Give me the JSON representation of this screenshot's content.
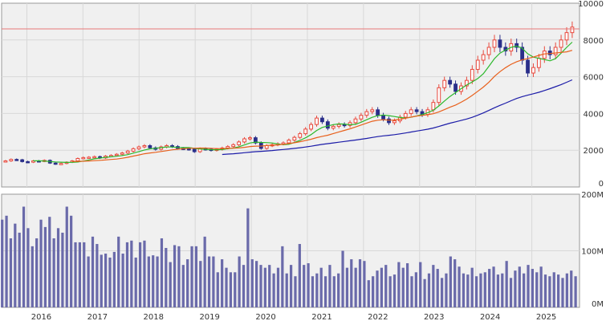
{
  "chart_data": [
    {
      "type": "candlestick",
      "title": "",
      "y_axis_position": "right",
      "ylim": [
        0,
        10000
      ],
      "y_ticks": [
        0,
        2000,
        4000,
        6000,
        8000,
        10000
      ],
      "y_tick_labels": [
        "0",
        "2000",
        "4000",
        "6000",
        "8000",
        "10000"
      ],
      "x_tick_labels": [
        "2016",
        "2017",
        "2018",
        "2019",
        "2020",
        "2021",
        "2022",
        "2023",
        "2024",
        "2025"
      ],
      "x_tick_values": [
        2016.0,
        2017.0,
        2018.0,
        2019.0,
        2020.0,
        2021.0,
        2022.0,
        2023.0,
        2024.0,
        2025.0
      ],
      "x_range": [
        2015.55,
        2025.85
      ],
      "grid": true,
      "reference_line": {
        "value": 8600,
        "color": "#e87878"
      },
      "colors": {
        "up": "#e8483c",
        "down": "#2a2f8a",
        "ma_short": "#2cb82c",
        "ma_mid": "#e8601c",
        "ma_long": "#1c1ca8",
        "plot_bg": "#f0f0f0"
      },
      "candle_close": [
        1420,
        1500,
        1480,
        1380,
        1350,
        1420,
        1400,
        1450,
        1300,
        1250,
        1280,
        1350,
        1420,
        1550,
        1600,
        1620,
        1650,
        1580,
        1680,
        1720,
        1780,
        1850,
        1950,
        2080,
        2180,
        2250,
        2130,
        2050,
        2180,
        2250,
        2200,
        2100,
        2080,
        2050,
        1920,
        2080,
        2050,
        2000,
        2050,
        2120,
        2200,
        2300,
        2450,
        2620,
        2680,
        2400,
        2100,
        2250,
        2300,
        2350,
        2400,
        2550,
        2700,
        2900,
        3150,
        3400,
        3750,
        3550,
        3200,
        3300,
        3400,
        3350,
        3500,
        3700,
        3900,
        4100,
        4200,
        3900,
        3700,
        3500,
        3600,
        3800,
        4000,
        4200,
        4100,
        3950,
        4200,
        4600,
        5400,
        5800,
        5600,
        5200,
        5500,
        5800,
        6400,
        6900,
        7200,
        7600,
        8000,
        7600,
        7400,
        7800,
        7600,
        6900,
        6200,
        6500,
        7000,
        7400,
        7200,
        7600,
        8000,
        8400,
        8700
      ]
    },
    {
      "type": "bar",
      "title": "",
      "y_axis_position": "right",
      "ylim": [
        0,
        200
      ],
      "y_ticks": [
        0,
        100,
        200
      ],
      "y_tick_labels": [
        "0M",
        "100M",
        "200M"
      ],
      "grid": true,
      "bar_color": "#6a6aaa",
      "values": [
        155,
        162,
        122,
        148,
        132,
        178,
        140,
        108,
        122,
        155,
        142,
        160,
        122,
        140,
        132,
        178,
        162,
        115,
        115,
        115,
        90,
        125,
        112,
        93,
        95,
        88,
        98,
        125,
        95,
        115,
        118,
        88,
        115,
        118,
        90,
        92,
        90,
        122,
        105,
        80,
        110,
        108,
        75,
        85,
        108,
        108,
        82,
        125,
        90,
        90,
        62,
        85,
        70,
        62,
        62,
        90,
        75,
        175,
        85,
        82,
        75,
        70,
        75,
        60,
        70,
        108,
        60,
        75,
        55,
        112,
        75,
        78,
        55,
        60,
        70,
        55,
        75,
        55,
        60,
        100,
        70,
        85,
        70,
        85,
        82,
        48,
        55,
        65,
        70,
        75,
        55,
        58,
        80,
        70,
        78,
        55,
        62,
        80,
        50,
        60,
        75,
        68,
        52,
        60,
        90,
        85,
        72,
        60,
        58,
        70,
        55,
        60,
        62,
        68,
        72,
        58,
        60,
        82,
        52,
        65,
        72,
        60,
        75,
        68,
        62,
        72,
        58,
        55,
        62,
        58,
        52,
        60,
        65,
        55
      ]
    }
  ]
}
